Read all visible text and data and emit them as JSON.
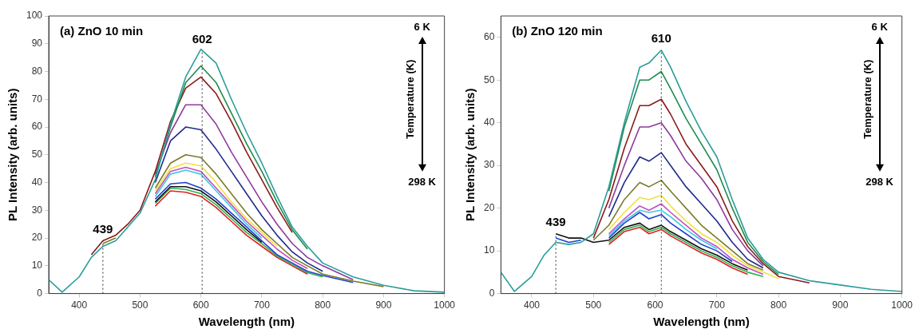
{
  "chart_data": [
    {
      "type": "line",
      "xlabel": "Wavelength (nm)",
      "ylabel": "PL Intensity (arb. units)",
      "xlim": [
        350,
        1000
      ],
      "xticks": [
        400,
        500,
        600,
        700,
        800,
        900,
        1000
      ],
      "ylim": [
        0,
        100
      ],
      "yticks": [
        0,
        10,
        20,
        30,
        40,
        50,
        60,
        70,
        80,
        90,
        100
      ],
      "grid": false,
      "legend": false,
      "x": [
        350,
        372,
        400,
        420,
        439,
        460,
        480,
        500,
        525,
        550,
        575,
        600,
        625,
        650,
        675,
        700,
        725,
        750,
        775,
        800,
        850,
        900,
        950,
        1000
      ],
      "series": [
        {
          "color": "#2a9d9a",
          "values": [
            5,
            0.5,
            6,
            13,
            17,
            19,
            24,
            29,
            41,
            61,
            78,
            88,
            83,
            70,
            58,
            47,
            35,
            24,
            17,
            11,
            6,
            3,
            1,
            0.5
          ]
        },
        {
          "color": "#1f8a4c",
          "values": [
            null,
            null,
            null,
            null,
            null,
            null,
            null,
            null,
            42,
            60,
            76,
            82,
            76,
            65,
            54,
            44,
            33,
            23,
            16,
            null,
            null,
            null,
            null,
            null
          ]
        },
        {
          "color": "#8b1a1a",
          "values": [
            null,
            null,
            null,
            14,
            19,
            21,
            25,
            30,
            44,
            62,
            74,
            78,
            72,
            62,
            51,
            41,
            31,
            22,
            null,
            null,
            null,
            null,
            null,
            null
          ]
        },
        {
          "color": "#8e3a9e",
          "values": [
            null,
            null,
            null,
            null,
            null,
            null,
            null,
            null,
            43,
            58,
            68,
            68,
            61,
            51,
            42,
            33,
            25,
            18,
            13,
            10,
            5,
            null,
            null,
            null
          ]
        },
        {
          "color": "#1f2a8a",
          "values": [
            null,
            null,
            null,
            null,
            null,
            null,
            null,
            null,
            40,
            55,
            60,
            59,
            52,
            44,
            36,
            28,
            21,
            15,
            11,
            8,
            null,
            null,
            null,
            null
          ]
        },
        {
          "color": "#7a7a2a",
          "values": [
            null,
            null,
            null,
            null,
            18,
            20,
            null,
            null,
            38,
            47,
            50,
            49,
            43,
            36,
            29,
            23,
            18,
            13,
            10,
            7,
            4.5,
            2.5,
            null,
            null
          ]
        },
        {
          "color": "#f0e040",
          "values": [
            null,
            null,
            null,
            null,
            null,
            null,
            null,
            null,
            37,
            45,
            47,
            46,
            40,
            33,
            27,
            22,
            17,
            null,
            null,
            null,
            null,
            null,
            null,
            null
          ]
        },
        {
          "color": "#c050c0",
          "values": [
            null,
            null,
            null,
            null,
            null,
            null,
            null,
            null,
            36,
            44,
            45.5,
            44,
            38,
            32,
            26,
            21,
            16,
            12,
            9,
            null,
            null,
            null,
            null,
            null
          ]
        },
        {
          "color": "#40c8e0",
          "values": [
            null,
            null,
            null,
            null,
            null,
            null,
            null,
            null,
            35,
            43,
            44.5,
            43,
            37,
            31,
            25,
            20,
            null,
            null,
            null,
            null,
            null,
            null,
            null,
            null
          ]
        },
        {
          "color": "#2040d0",
          "values": [
            null,
            null,
            null,
            null,
            null,
            null,
            null,
            null,
            34,
            39.5,
            40,
            38,
            34,
            29,
            24,
            19,
            14,
            11,
            8,
            6.5,
            4,
            null,
            null,
            null
          ]
        },
        {
          "color": "#111111",
          "values": [
            null,
            null,
            null,
            null,
            null,
            null,
            null,
            null,
            33,
            38.5,
            38.5,
            37,
            33,
            28,
            23,
            18.5,
            null,
            null,
            null,
            null,
            null,
            null,
            null,
            null
          ]
        },
        {
          "color": "#30b050",
          "values": [
            null,
            null,
            null,
            null,
            null,
            null,
            null,
            null,
            32.5,
            38,
            37.5,
            36,
            32,
            27,
            22,
            18,
            13.5,
            10.5,
            7.5,
            6,
            null,
            null,
            null,
            null
          ]
        },
        {
          "color": "#e02020",
          "values": [
            null,
            null,
            null,
            null,
            null,
            null,
            null,
            null,
            31.5,
            37,
            36.5,
            35,
            31,
            26,
            21,
            17,
            13,
            10,
            7,
            null,
            null,
            null,
            null,
            null
          ]
        }
      ],
      "ref_lines": [
        {
          "axis": "x",
          "value": 439,
          "label": "439",
          "line_style": "dotted"
        },
        {
          "axis": "x",
          "value": 602,
          "label": "602",
          "line_style": "dotted"
        }
      ],
      "annotations": [
        "(a) ZnO 10 min",
        "6 K",
        "Temperature (K)",
        "298 K"
      ]
    },
    {
      "type": "line",
      "xlabel": "Wavelength (nm)",
      "ylabel": "PL Intensity (arb. units)",
      "xlim": [
        350,
        1000
      ],
      "xticks": [
        400,
        500,
        600,
        700,
        800,
        900,
        1000
      ],
      "ylim": [
        0,
        65
      ],
      "yticks": [
        0,
        10,
        20,
        30,
        40,
        50,
        60
      ],
      "grid": false,
      "legend": false,
      "x": [
        350,
        372,
        400,
        420,
        439,
        460,
        480,
        500,
        525,
        550,
        575,
        590,
        610,
        625,
        650,
        675,
        700,
        725,
        750,
        775,
        800,
        850,
        900,
        950,
        1000
      ],
      "series": [
        {
          "color": "#2a9d9a",
          "values": [
            5,
            0.5,
            4,
            9,
            12,
            11.5,
            12,
            14,
            25,
            40,
            53,
            54,
            57,
            53,
            45,
            38,
            32,
            22,
            13,
            8,
            5,
            3,
            2,
            1,
            0.5
          ]
        },
        {
          "color": "#1f8a4c",
          "values": [
            null,
            null,
            null,
            null,
            null,
            null,
            null,
            null,
            24,
            39,
            50,
            50,
            52,
            48,
            41,
            35,
            29,
            20,
            12,
            7.5,
            4.5,
            null,
            null,
            null,
            null
          ]
        },
        {
          "color": "#8b1a1a",
          "values": [
            null,
            null,
            null,
            null,
            null,
            null,
            null,
            13,
            22,
            34,
            44,
            44,
            45.5,
            42,
            35,
            30,
            25,
            17,
            11,
            7,
            4,
            2.5,
            null,
            null,
            null
          ]
        },
        {
          "color": "#8e3a9e",
          "values": [
            null,
            null,
            null,
            null,
            null,
            null,
            null,
            null,
            20,
            30,
            39,
            39,
            40,
            37,
            31,
            27,
            22,
            15,
            10,
            6.5,
            null,
            null,
            null,
            null,
            null
          ]
        },
        {
          "color": "#1f2a8a",
          "values": [
            null,
            null,
            null,
            null,
            null,
            null,
            null,
            null,
            18,
            26,
            32,
            31,
            33,
            30,
            25,
            21,
            17,
            12,
            8,
            6,
            null,
            null,
            null,
            null,
            null
          ]
        },
        {
          "color": "#7a7a2a",
          "values": [
            null,
            null,
            null,
            null,
            null,
            null,
            null,
            12.5,
            16,
            22,
            26,
            25,
            26.5,
            24,
            20,
            16,
            13,
            10,
            7,
            5.5,
            null,
            null,
            null,
            null,
            null
          ]
        },
        {
          "color": "#f0e040",
          "values": [
            null,
            null,
            null,
            null,
            null,
            null,
            null,
            null,
            15,
            19,
            22.5,
            22,
            23,
            20.5,
            17,
            14,
            12,
            9,
            6.5,
            5,
            3.5,
            null,
            null,
            null,
            null
          ]
        },
        {
          "color": "#c050c0",
          "values": [
            null,
            null,
            null,
            null,
            null,
            null,
            null,
            null,
            14,
            17.5,
            20.5,
            19.5,
            21,
            19,
            16,
            13,
            11,
            8,
            6,
            4.5,
            null,
            null,
            null,
            null,
            null
          ]
        },
        {
          "color": "#40c8e0",
          "values": [
            null,
            null,
            null,
            null,
            null,
            null,
            null,
            null,
            13.5,
            17,
            19.5,
            19,
            19.5,
            18,
            15,
            12.5,
            10.5,
            null,
            null,
            null,
            null,
            null,
            null,
            null,
            null
          ]
        },
        {
          "color": "#2040d0",
          "values": [
            null,
            null,
            null,
            null,
            13,
            12,
            12.5,
            null,
            13,
            16.5,
            19,
            17.5,
            18.5,
            16.5,
            14,
            11.5,
            10,
            7.5,
            null,
            null,
            null,
            null,
            null,
            null,
            null
          ]
        },
        {
          "color": "#111111",
          "values": [
            null,
            null,
            null,
            null,
            14,
            13,
            13,
            12,
            12.5,
            15.5,
            16.5,
            15,
            16,
            14.5,
            12.5,
            10.5,
            9,
            7,
            5.5,
            null,
            null,
            null,
            null,
            null,
            null
          ]
        },
        {
          "color": "#30b050",
          "values": [
            null,
            null,
            null,
            null,
            null,
            null,
            null,
            null,
            12,
            15,
            16,
            14.5,
            15.5,
            14,
            12,
            10,
            8.5,
            6.5,
            5,
            4,
            null,
            null,
            null,
            null,
            null
          ]
        },
        {
          "color": "#e02020",
          "values": [
            null,
            null,
            null,
            null,
            null,
            null,
            null,
            null,
            11.5,
            14.5,
            15.5,
            14,
            15,
            13.5,
            11.5,
            9.5,
            8,
            6,
            4.5,
            null,
            null,
            null,
            null,
            null,
            null
          ]
        }
      ],
      "ref_lines": [
        {
          "axis": "x",
          "value": 439,
          "label": "439",
          "line_style": "dotted"
        },
        {
          "axis": "x",
          "value": 610,
          "label": "610",
          "line_style": "dotted"
        }
      ],
      "annotations": [
        "(b) ZnO 120 min",
        "6 K",
        "Temperature (K)",
        "298 K"
      ]
    }
  ]
}
